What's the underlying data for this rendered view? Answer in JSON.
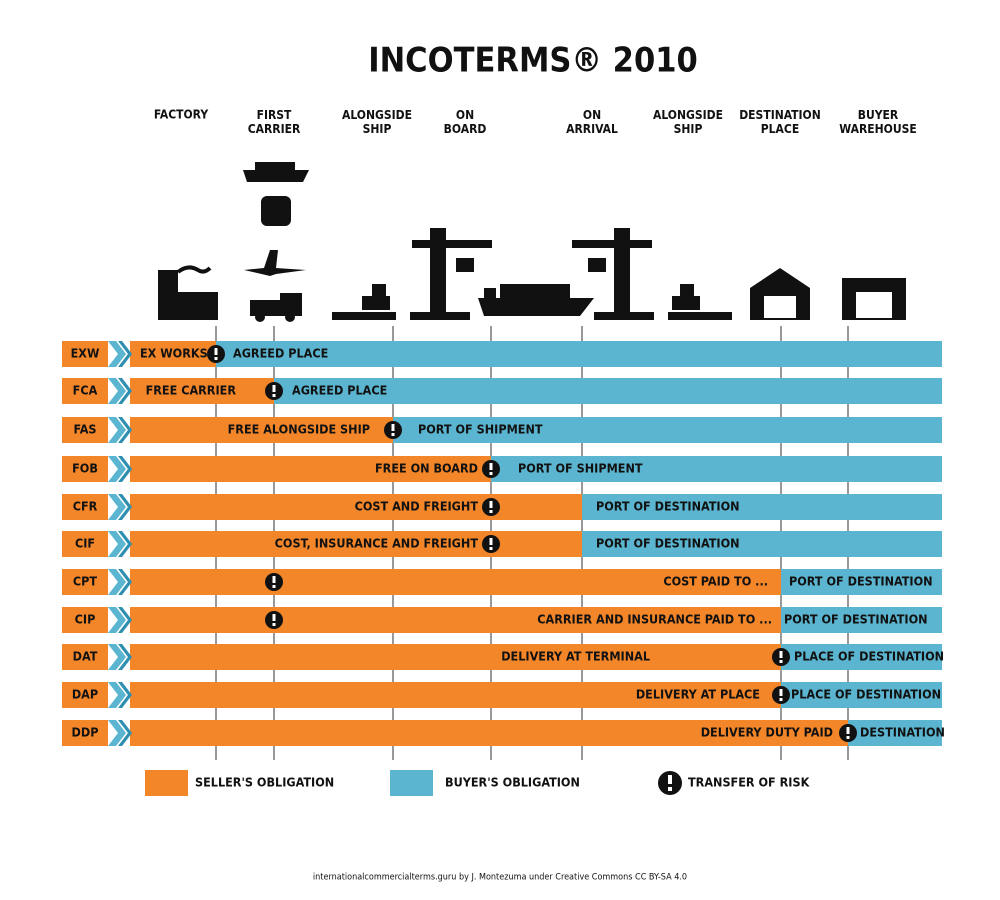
{
  "header": {
    "title": "INCOTERMS® 2010"
  },
  "stages": [
    "FACTORY",
    "FIRST CARRIER",
    "ALONGSIDE SHIP",
    "ON BOARD",
    "ON ARRIVAL",
    "ALONGSIDE SHIP",
    "DESTINATION PLACE",
    "BUYER WAREHOUSE"
  ],
  "rows": [
    {
      "code": "EXW",
      "seller": "EX WORKS",
      "buyer": "AGREED PLACE"
    },
    {
      "code": "FCA",
      "seller": "FREE CARRIER",
      "buyer": "AGREED PLACE"
    },
    {
      "code": "FAS",
      "seller": "FREE ALONGSIDE SHIP",
      "buyer": "PORT OF SHIPMENT"
    },
    {
      "code": "FOB",
      "seller": "FREE ON BOARD",
      "buyer": "PORT OF SHIPMENT"
    },
    {
      "code": "CFR",
      "seller": "COST AND FREIGHT",
      "buyer": "PORT OF DESTINATION"
    },
    {
      "code": "CIF",
      "seller": "COST, INSURANCE AND FREIGHT",
      "buyer": "PORT OF DESTINATION"
    },
    {
      "code": "CPT",
      "seller": "COST PAID TO ...",
      "buyer": "PORT OF DESTINATION"
    },
    {
      "code": "CIP",
      "seller": "CARRIER AND INSURANCE PAID TO ...",
      "buyer": "PORT OF DESTINATION"
    },
    {
      "code": "DAT",
      "seller": "DELIVERY AT TERMINAL",
      "buyer": "PLACE OF DESTINATION"
    },
    {
      "code": "DAP",
      "seller": "DELIVERY AT PLACE",
      "buyer": "PLACE OF DESTINATION"
    },
    {
      "code": "DDP",
      "seller": "DELIVERY DUTY PAID",
      "buyer": "DESTINATION"
    }
  ],
  "legend": {
    "seller": "SELLER'S OBLIGATION",
    "buyer": "BUYER'S OBLIGATION",
    "risk": "TRANSFER OF RISK"
  },
  "footer": "internationalcommercialterms.guru by J. Montezuma under Creative Commons CC BY-SA 4.0"
}
